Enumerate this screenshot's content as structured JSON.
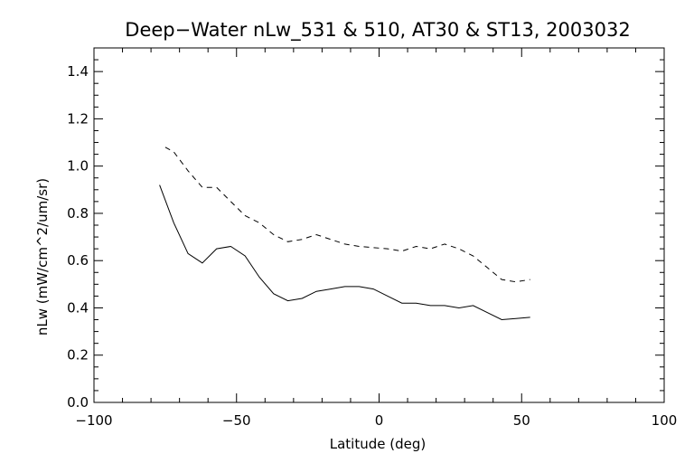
{
  "chart_data": {
    "type": "line",
    "title": "Deep−Water nLw_531 & 510, AT30 & ST13, 2003032",
    "xlabel": "Latitude (deg)",
    "ylabel": "nLw (mW/cm^2/um/sr)",
    "xlim": [
      -100,
      100
    ],
    "ylim": [
      0.0,
      1.5
    ],
    "xticks": [
      -100,
      -50,
      0,
      50,
      100
    ],
    "xtick_labels": [
      "−100",
      "−50",
      "0",
      "50",
      "100"
    ],
    "yticks": [
      0.0,
      0.2,
      0.4,
      0.6,
      0.8,
      1.0,
      1.2,
      1.4
    ],
    "ytick_labels": [
      "0.0",
      "0.2",
      "0.4",
      "0.6",
      "0.8",
      "1.0",
      "1.2",
      "1.4"
    ],
    "grid": false,
    "series": [
      {
        "style": "solid",
        "x": [
          -77,
          -72,
          -67,
          -62,
          -57,
          -52,
          -47,
          -42,
          -37,
          -32,
          -27,
          -22,
          -17,
          -12,
          -7,
          -2,
          3,
          8,
          13,
          18,
          23,
          28,
          33,
          38,
          43,
          48,
          53
        ],
        "y": [
          0.92,
          0.76,
          0.63,
          0.59,
          0.65,
          0.66,
          0.62,
          0.53,
          0.46,
          0.43,
          0.44,
          0.47,
          0.48,
          0.49,
          0.49,
          0.48,
          0.45,
          0.42,
          0.42,
          0.41,
          0.41,
          0.4,
          0.41,
          0.38,
          0.35,
          0.355,
          0.36
        ]
      },
      {
        "style": "dashed",
        "x": [
          -75,
          -72,
          -67,
          -62,
          -57,
          -52,
          -47,
          -42,
          -37,
          -32,
          -27,
          -22,
          -17,
          -12,
          -7,
          -2,
          3,
          8,
          13,
          18,
          23,
          28,
          33,
          38,
          43,
          48,
          53
        ],
        "y": [
          1.08,
          1.06,
          0.98,
          0.91,
          0.91,
          0.85,
          0.79,
          0.76,
          0.71,
          0.68,
          0.69,
          0.71,
          0.69,
          0.67,
          0.66,
          0.655,
          0.65,
          0.64,
          0.66,
          0.65,
          0.67,
          0.65,
          0.62,
          0.57,
          0.52,
          0.51,
          0.52
        ]
      }
    ]
  }
}
